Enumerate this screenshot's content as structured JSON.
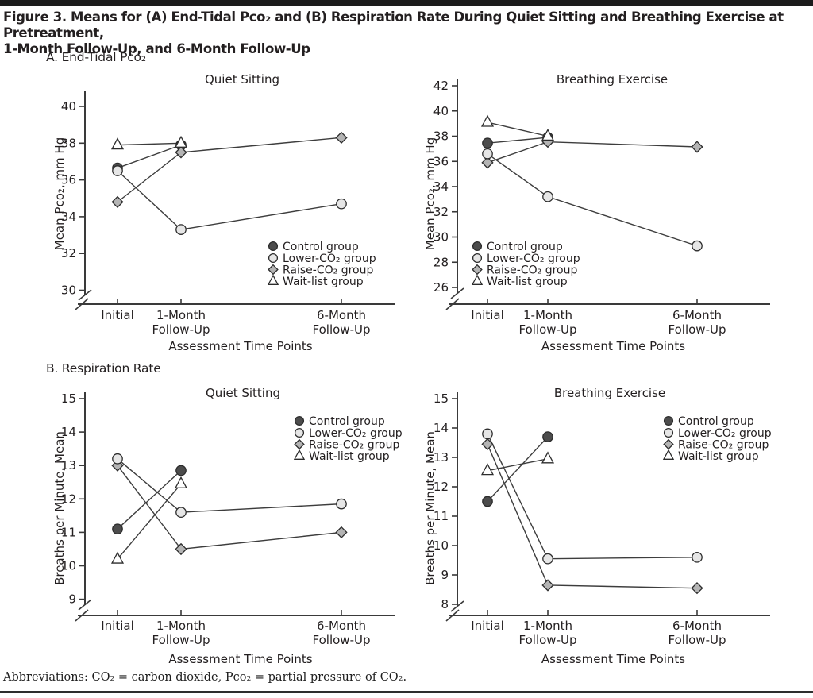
{
  "page": {
    "title_lines": [
      "Figure 3. Means for (A) End-Tidal Pco₂ and (B) Respiration Rate During Quiet Sitting and Breathing Exercise at Pretreatment,",
      "1-Month Follow-Up, and 6-Month Follow-Up"
    ],
    "panel_a_label": "A. End-Tidal Pco₂",
    "panel_b_label": "B. Respiration Rate",
    "footer": "Abbreviations: CO₂ = carbon dioxide, Pco₂ = partial pressure of CO₂."
  },
  "groups": [
    {
      "name": "Control group",
      "marker": "circle",
      "fill": "#4c4c4c"
    },
    {
      "name": "Lower-CO₂ group",
      "marker": "circle",
      "fill": "#e6e6e6"
    },
    {
      "name": "Raise-CO₂ group",
      "marker": "diamond",
      "fill": "#b4b4b4"
    },
    {
      "name": "Wait-list group",
      "marker": "triangle",
      "fill": "#ffffff"
    }
  ],
  "colors": {
    "line": "#3d3d3d",
    "axis": "#3a3a3a",
    "marker_stroke": "#2c2c2c",
    "text": "#231f20"
  },
  "chart_data": [
    {
      "type": "line",
      "panel": "A. End-Tidal Pco₂",
      "title": "Quiet Sitting",
      "ylabel": "Mean Pco₂, mm Hg",
      "xlabel": "Assessment Time Points",
      "categories": [
        "Initial",
        "1-Month\nFollow-Up",
        "6-Month\nFollow-Up"
      ],
      "ylim": [
        30,
        40
      ],
      "yticks": [
        30,
        32,
        34,
        36,
        38,
        40
      ],
      "axis_break": true,
      "grid": false,
      "legend_position": "bottom-right",
      "series": [
        {
          "name": "Control group",
          "values": [
            36.65,
            37.9,
            null
          ]
        },
        {
          "name": "Lower-CO₂ group",
          "values": [
            36.5,
            33.3,
            34.7
          ]
        },
        {
          "name": "Raise-CO₂ group",
          "values": [
            34.8,
            37.5,
            38.3
          ]
        },
        {
          "name": "Wait-list group",
          "values": [
            37.9,
            38.0,
            null
          ]
        }
      ]
    },
    {
      "type": "line",
      "panel": "A. End-Tidal Pco₂",
      "title": "Breathing Exercise",
      "ylabel": "Mean Pco₂, mm Hg",
      "xlabel": "Assessment Time Points",
      "categories": [
        "Initial",
        "1-Month\nFollow-Up",
        "6-Month\nFollow-Up"
      ],
      "ylim": [
        26,
        42
      ],
      "yticks": [
        26,
        28,
        30,
        32,
        34,
        36,
        38,
        40,
        42
      ],
      "axis_break": true,
      "grid": false,
      "legend_position": "bottom-left",
      "series": [
        {
          "name": "Control group",
          "values": [
            37.45,
            37.9,
            null
          ]
        },
        {
          "name": "Lower-CO₂ group",
          "values": [
            36.6,
            33.2,
            29.3
          ]
        },
        {
          "name": "Raise-CO₂ group",
          "values": [
            35.9,
            37.55,
            37.15
          ]
        },
        {
          "name": "Wait-list group",
          "values": [
            39.1,
            38.0,
            null
          ]
        }
      ]
    },
    {
      "type": "line",
      "panel": "B. Respiration Rate",
      "title": "Quiet Sitting",
      "ylabel": "Breaths per Minute, Mean",
      "xlabel": "Assessment Time Points",
      "categories": [
        "Initial",
        "1-Month\nFollow-Up",
        "6-Month\nFollow-Up"
      ],
      "ylim": [
        9,
        15
      ],
      "yticks": [
        9,
        10,
        11,
        12,
        13,
        14,
        15
      ],
      "axis_break": true,
      "grid": false,
      "legend_position": "top-right",
      "series": [
        {
          "name": "Control group",
          "values": [
            11.1,
            12.85,
            null
          ]
        },
        {
          "name": "Lower-CO₂ group",
          "values": [
            13.2,
            11.6,
            11.85
          ]
        },
        {
          "name": "Raise-CO₂ group",
          "values": [
            13.0,
            10.5,
            11.0
          ]
        },
        {
          "name": "Wait-list group",
          "values": [
            10.2,
            12.45,
            null
          ]
        }
      ]
    },
    {
      "type": "line",
      "panel": "B. Respiration Rate",
      "title": "Breathing Exercise",
      "ylabel": "Breaths per Minute, Mean",
      "xlabel": "Assessment Time Points",
      "categories": [
        "Initial",
        "1-Month\nFollow-Up",
        "6-Month\nFollow-Up"
      ],
      "ylim": [
        8,
        15
      ],
      "yticks": [
        8,
        9,
        10,
        11,
        12,
        13,
        14,
        15
      ],
      "axis_break": true,
      "grid": false,
      "legend_position": "top-right",
      "series": [
        {
          "name": "Control group",
          "values": [
            11.5,
            13.7,
            null
          ]
        },
        {
          "name": "Lower-CO₂ group",
          "values": [
            13.8,
            9.55,
            9.6
          ]
        },
        {
          "name": "Raise-CO₂ group",
          "values": [
            13.45,
            8.65,
            8.55
          ]
        },
        {
          "name": "Wait-list group",
          "values": [
            12.55,
            12.95,
            null
          ]
        }
      ]
    }
  ]
}
